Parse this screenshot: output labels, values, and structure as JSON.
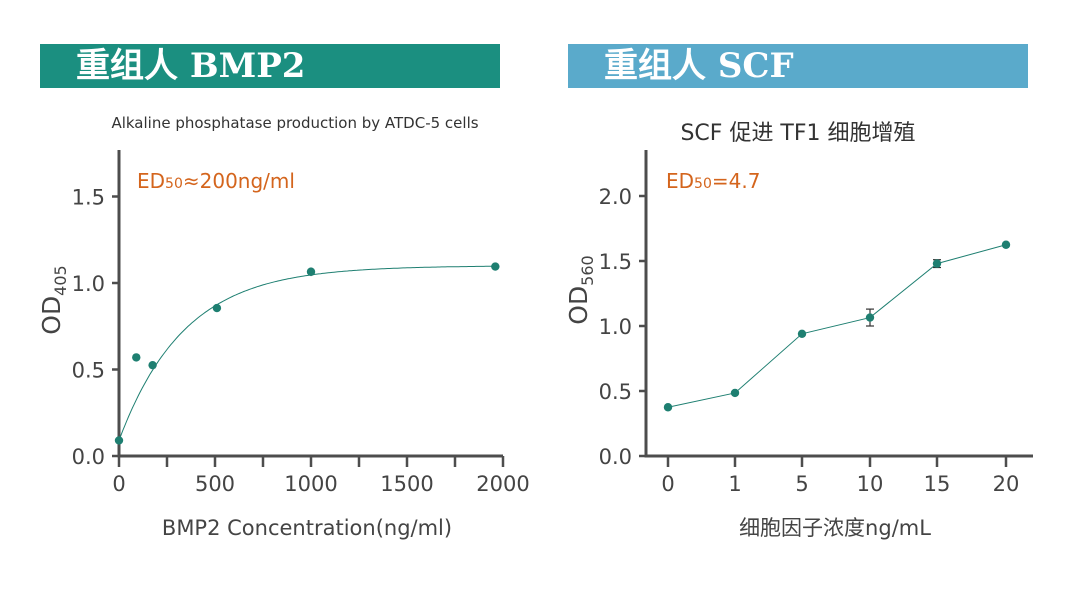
{
  "banners": {
    "left": "重组人 BMP2",
    "right": "重组人 SCF",
    "left_color": "#1b8f80",
    "right_color": "#5aaacb"
  },
  "annotations": {
    "left_ed_main": "ED",
    "left_ed_sub": "50",
    "left_ed_rest": "≈200ng/ml",
    "right_ed_main": "ED",
    "right_ed_sub": "50",
    "right_ed_rest": "=4.7",
    "color": "#d4651d"
  },
  "chart_data": [
    {
      "type": "scatter",
      "title": "Alkaline phosphatase production by ATDC-5 cells",
      "xlabel": "BMP2 Concentration(ng/ml)",
      "ylabel_main": "OD",
      "ylabel_sub": "405",
      "xlim": [
        0,
        2000
      ],
      "ylim": [
        0,
        1.75
      ],
      "x_ticks": [
        "0",
        "500",
        "1000",
        "1500",
        "2000"
      ],
      "y_ticks": [
        "0.0",
        "0.5",
        "1.0",
        "1.5"
      ],
      "fit_curve": true,
      "series": [
        {
          "x": [
            0,
            90,
            175,
            510,
            1000,
            1960
          ],
          "y": [
            0.09,
            0.57,
            0.525,
            0.855,
            1.065,
            1.095
          ],
          "err": [
            0,
            0,
            0,
            0.02,
            0.025,
            0
          ],
          "color": "#1e7f71"
        }
      ]
    },
    {
      "type": "line",
      "title": "SCF 促进 TF1 细胞增殖",
      "xlabel": "细胞因子浓度ng/mL",
      "ylabel_main": "OD",
      "ylabel_sub": "560",
      "categories": [
        "0",
        "1",
        "5",
        "10",
        "15",
        "20"
      ],
      "y_ticks": [
        "0.0",
        "0.5",
        "1.0",
        "1.5",
        "2.0"
      ],
      "ylim": [
        0,
        2.3
      ],
      "series": [
        {
          "values": [
            0.375,
            0.485,
            0.94,
            1.065,
            1.48,
            1.625
          ],
          "err": [
            0,
            0,
            0,
            0.065,
            0.03,
            0
          ],
          "color": "#1e7f71"
        }
      ]
    }
  ]
}
